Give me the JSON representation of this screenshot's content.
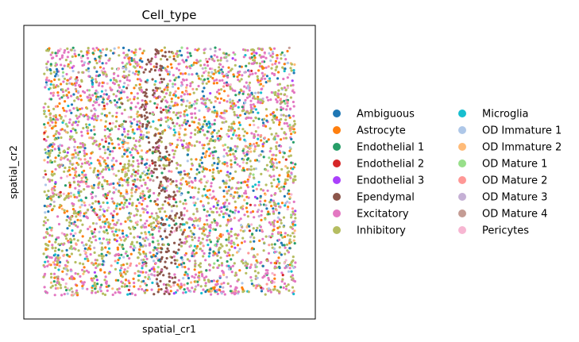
{
  "chart_data": {
    "type": "scatter",
    "title": "Cell_type",
    "xlabel": "spatial_cr1",
    "ylabel": "spatial_cr2",
    "xlim": [
      0,
      1
    ],
    "ylim": [
      0,
      1
    ],
    "grid": false,
    "ticks": false,
    "legend_placement": "right",
    "legend_columns": 2,
    "categories": [
      {
        "name": "Ambiguous",
        "color": "#1f77b4",
        "share": 0.05
      },
      {
        "name": "Astrocyte",
        "color": "#ff7f0e",
        "share": 0.11
      },
      {
        "name": "Endothelial 1",
        "color": "#279e68",
        "share": 0.06
      },
      {
        "name": "Endothelial 2",
        "color": "#d62728",
        "share": 0.01
      },
      {
        "name": "Endothelial 3",
        "color": "#aa40fc",
        "share": 0.01
      },
      {
        "name": "Ependymal",
        "color": "#8c564b",
        "share": 0.03
      },
      {
        "name": "Excitatory",
        "color": "#e377c2",
        "share": 0.2
      },
      {
        "name": "Inhibitory",
        "color": "#b5bd61",
        "share": 0.34
      },
      {
        "name": "Microglia",
        "color": "#17becf",
        "share": 0.03
      },
      {
        "name": "OD Immature 1",
        "color": "#aec7e8",
        "share": 0.03
      },
      {
        "name": "OD Immature 2",
        "color": "#ffbb78",
        "share": 0.03
      },
      {
        "name": "OD Mature 1",
        "color": "#98df8a",
        "share": 0.02
      },
      {
        "name": "OD Mature 2",
        "color": "#ff9896",
        "share": 0.03
      },
      {
        "name": "OD Mature 3",
        "color": "#c5b0d5",
        "share": 0.02
      },
      {
        "name": "OD Mature 4",
        "color": "#c49c94",
        "share": 0.01
      },
      {
        "name": "Pericytes",
        "color": "#f7b6d2",
        "share": 0.02
      }
    ],
    "point_count": 4200
  }
}
